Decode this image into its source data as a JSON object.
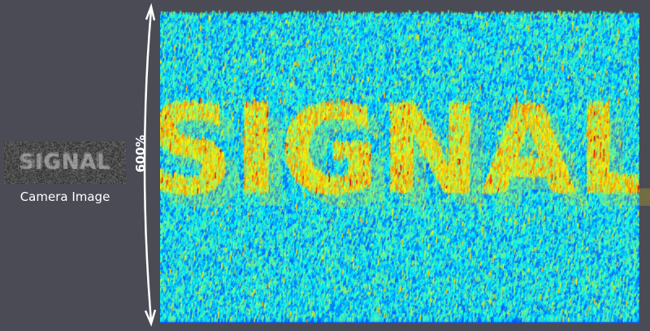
{
  "camera": {
    "label": "Camera Image",
    "hidden_text": "SIGNAL"
  },
  "scale": {
    "label": "600%"
  },
  "surface": {
    "colormap": "jet",
    "background": "#4b4b56",
    "signal_text": "SIGNAL"
  }
}
